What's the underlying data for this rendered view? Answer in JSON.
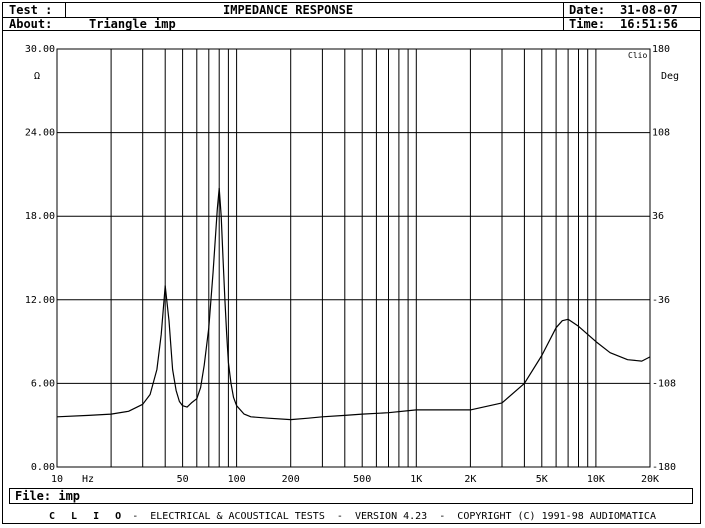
{
  "header": {
    "test_label": "Test :",
    "test_value": "IMPEDANCE RESPONSE",
    "about_label": "About:",
    "about_value": "Triangle imp",
    "date_label": "Date:",
    "date_value": "31-08-07",
    "time_label": "Time:",
    "time_value": "16:51:56"
  },
  "file": {
    "label": "File:",
    "value": "imp"
  },
  "footer": {
    "brand": "C L I O",
    "text": " -  ELECTRICAL & ACOUSTICAL TESTS  -  VERSION 4.23  -  COPYRIGHT (C) 1991-98 AUDIOMATICA"
  },
  "chart_data": {
    "type": "line",
    "title": "IMPEDANCE RESPONSE",
    "corner_mark": "Clio",
    "x_unit": "Hz",
    "y_unit": "Ω",
    "y2_unit": "Deg",
    "xlim": [
      10,
      20000
    ],
    "x_scale": "log",
    "ylim": [
      0,
      30
    ],
    "y2lim": [
      -180,
      180
    ],
    "grid": true,
    "x_ticks": [
      {
        "value": 10,
        "label": "10"
      },
      {
        "value": 50,
        "label": "50"
      },
      {
        "value": 100,
        "label": "100"
      },
      {
        "value": 200,
        "label": "200"
      },
      {
        "value": 500,
        "label": "500"
      },
      {
        "value": 1000,
        "label": "1K"
      },
      {
        "value": 2000,
        "label": "2K"
      },
      {
        "value": 5000,
        "label": "5K"
      },
      {
        "value": 10000,
        "label": "10K"
      },
      {
        "value": 20000,
        "label": "20K"
      }
    ],
    "y_ticks": [
      {
        "value": 0,
        "label": "0.00"
      },
      {
        "value": 6,
        "label": "6.00"
      },
      {
        "value": 12,
        "label": "12.00"
      },
      {
        "value": 18,
        "label": "18.00"
      },
      {
        "value": 24,
        "label": "24.00"
      },
      {
        "value": 30,
        "label": "30.00"
      }
    ],
    "y2_ticks": [
      {
        "value": -180,
        "label": "-180"
      },
      {
        "value": -108,
        "label": "-108"
      },
      {
        "value": -36,
        "label": "-36"
      },
      {
        "value": 36,
        "label": "36"
      },
      {
        "value": 108,
        "label": "108"
      },
      {
        "value": 180,
        "label": "180"
      }
    ],
    "series": [
      {
        "color": "#000000",
        "x": [
          10,
          15,
          20,
          25,
          30,
          33,
          36,
          38,
          40,
          42,
          44,
          46,
          48,
          50,
          53,
          56,
          60,
          63,
          66,
          70,
          74,
          78,
          80,
          82,
          84,
          86,
          88,
          90,
          93,
          96,
          100,
          110,
          120,
          150,
          200,
          250,
          300,
          400,
          500,
          700,
          1000,
          1500,
          2000,
          3000,
          4000,
          5000,
          6000,
          6500,
          7000,
          8000,
          10000,
          12000,
          15000,
          18000,
          20000
        ],
        "y": [
          3.6,
          3.7,
          3.8,
          4.0,
          4.5,
          5.2,
          7.0,
          9.5,
          13.0,
          10.5,
          7.0,
          5.5,
          4.7,
          4.4,
          4.3,
          4.6,
          4.9,
          5.7,
          7.3,
          10.0,
          14.0,
          18.5,
          20.0,
          18.0,
          15.0,
          12.0,
          9.5,
          7.5,
          6.0,
          5.0,
          4.4,
          3.8,
          3.6,
          3.5,
          3.4,
          3.5,
          3.6,
          3.7,
          3.8,
          3.9,
          4.1,
          4.1,
          4.1,
          4.6,
          6.0,
          8.0,
          10.0,
          10.5,
          10.6,
          10.1,
          9.0,
          8.2,
          7.7,
          7.6,
          7.9
        ]
      }
    ]
  }
}
